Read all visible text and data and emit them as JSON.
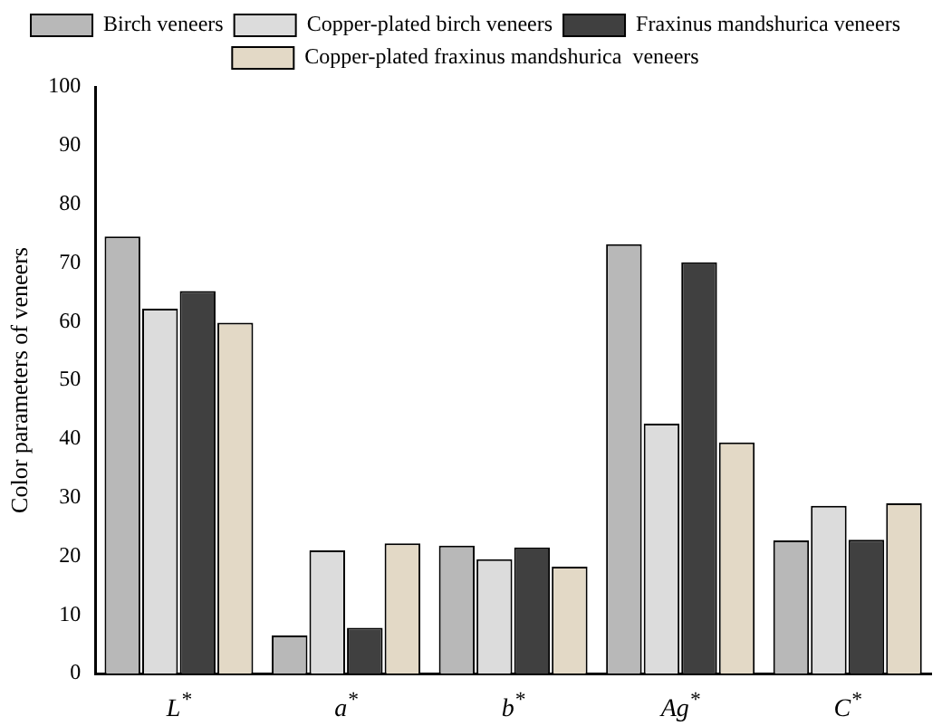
{
  "chart_data": {
    "type": "bar",
    "ylabel": "Color parameters of veneers",
    "categories": [
      "L$^{*}$",
      "a$^{*}$",
      "b$^{*}$",
      "Ag$^{*}$",
      "C$^{*}$"
    ],
    "series": [
      {
        "name": "Birch veneers",
        "color": "#b8b8b8",
        "values": [
          74.5,
          6.5,
          21.8,
          73.2,
          22.7
        ]
      },
      {
        "name": "Copper-plated birch veneers",
        "color": "#dcdcdc",
        "values": [
          62.2,
          21,
          19.5,
          42.6,
          28.6
        ]
      },
      {
        "name": "Fraxinus mandshurica veneers",
        "color": "#404040",
        "values": [
          65.2,
          7.8,
          21.5,
          70.1,
          22.8
        ]
      },
      {
        "name": "Copper-plated fraxinus mandshurica  veneers",
        "color": "#e3d9c6",
        "values": [
          59.8,
          22.2,
          18.2,
          39.4,
          29
        ]
      }
    ],
    "ylim": [
      0,
      100
    ],
    "yticks": [
      0,
      10,
      20,
      30,
      40,
      50,
      60,
      70,
      80,
      90,
      100
    ],
    "grid": false,
    "legend": "top"
  }
}
